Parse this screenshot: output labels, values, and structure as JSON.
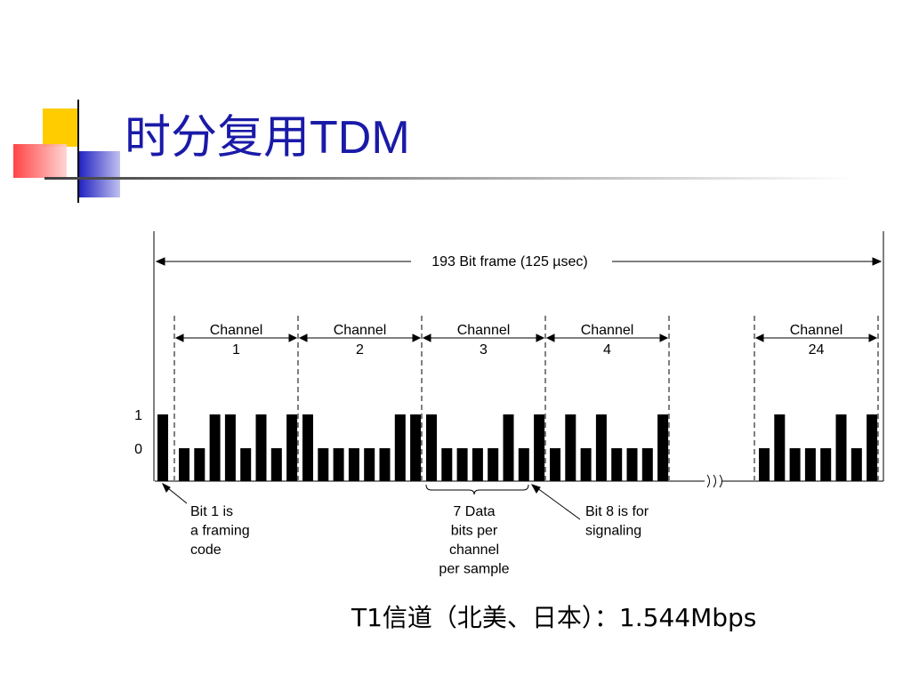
{
  "title": {
    "han": "时分复用",
    "latin": "TDM"
  },
  "diagram": {
    "frame_label": "193 Bit frame  (125 µsec)",
    "level_labels": [
      "1",
      "0"
    ],
    "framing_bit": 1,
    "channels": [
      {
        "label": "Channel",
        "number": "1",
        "bits": [
          0,
          0,
          1,
          1,
          0,
          1,
          0,
          1
        ]
      },
      {
        "label": "Channel",
        "number": "2",
        "bits": [
          1,
          0,
          0,
          0,
          0,
          0,
          1,
          1
        ]
      },
      {
        "label": "Channel",
        "number": "3",
        "bits": [
          1,
          0,
          0,
          0,
          0,
          1,
          0,
          1
        ]
      },
      {
        "label": "Channel",
        "number": "4",
        "bits": [
          0,
          1,
          0,
          1,
          0,
          0,
          0,
          1
        ]
      },
      {
        "label": "Channel",
        "number": "24",
        "bits": [
          0,
          1,
          0,
          0,
          0,
          1,
          0,
          1
        ]
      }
    ],
    "annotations": [
      {
        "lines": [
          "Bit 1 is",
          "a framing",
          "code"
        ]
      },
      {
        "lines": [
          "7 Data",
          "bits per",
          "channel",
          "per sample"
        ]
      },
      {
        "lines": [
          "Bit 8 is for",
          "signaling"
        ]
      }
    ]
  },
  "footer": "T1信道（北美、日本）：1.544Mbps"
}
